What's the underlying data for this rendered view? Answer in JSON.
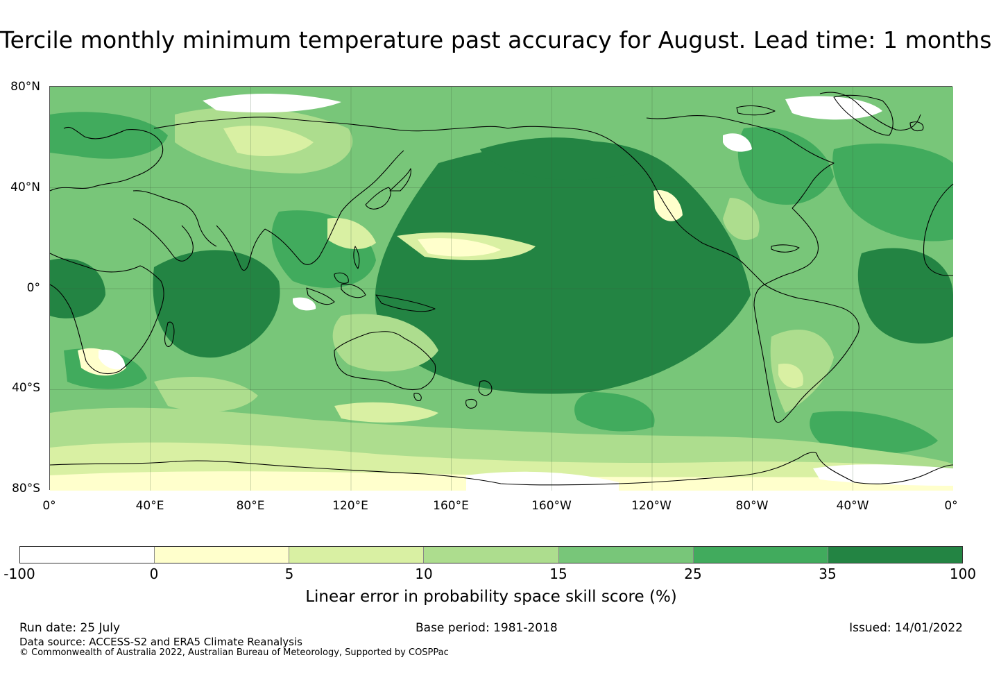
{
  "title": "Tercile monthly minimum temperature past accuracy for August. Lead time: 1 months",
  "map": {
    "projection": "equirectangular, centered on 180°",
    "latitude_labels": [
      "80°N",
      "40°N",
      "0°",
      "40°S",
      "80°S"
    ],
    "longitude_labels": [
      "0°",
      "40°E",
      "80°E",
      "120°E",
      "160°E",
      "160°W",
      "120°W",
      "80°W",
      "40°W",
      "0°"
    ],
    "gridlines": true,
    "coastlines": true
  },
  "colorbar": {
    "colors": [
      "#ffffff",
      "#ffffcc",
      "#d9f0a3",
      "#addd8e",
      "#78c679",
      "#41ab5d",
      "#238443"
    ],
    "tick_labels": [
      "-100",
      "0",
      "5",
      "10",
      "15",
      "25",
      "35",
      "100"
    ],
    "label": "Linear error in probability space skill score (%)"
  },
  "footer": {
    "run_date": "Run date: 25 July",
    "base_period": "Base period: 1981-2018",
    "issued": "Issued: 14/01/2022",
    "data_source": "Data source: ACCESS-S2 and ERA5 Climate Reanalysis",
    "copyright": "© Commonwealth of Australia 2022, Australian Bureau of Meteorology, Supported by COSPPac"
  }
}
